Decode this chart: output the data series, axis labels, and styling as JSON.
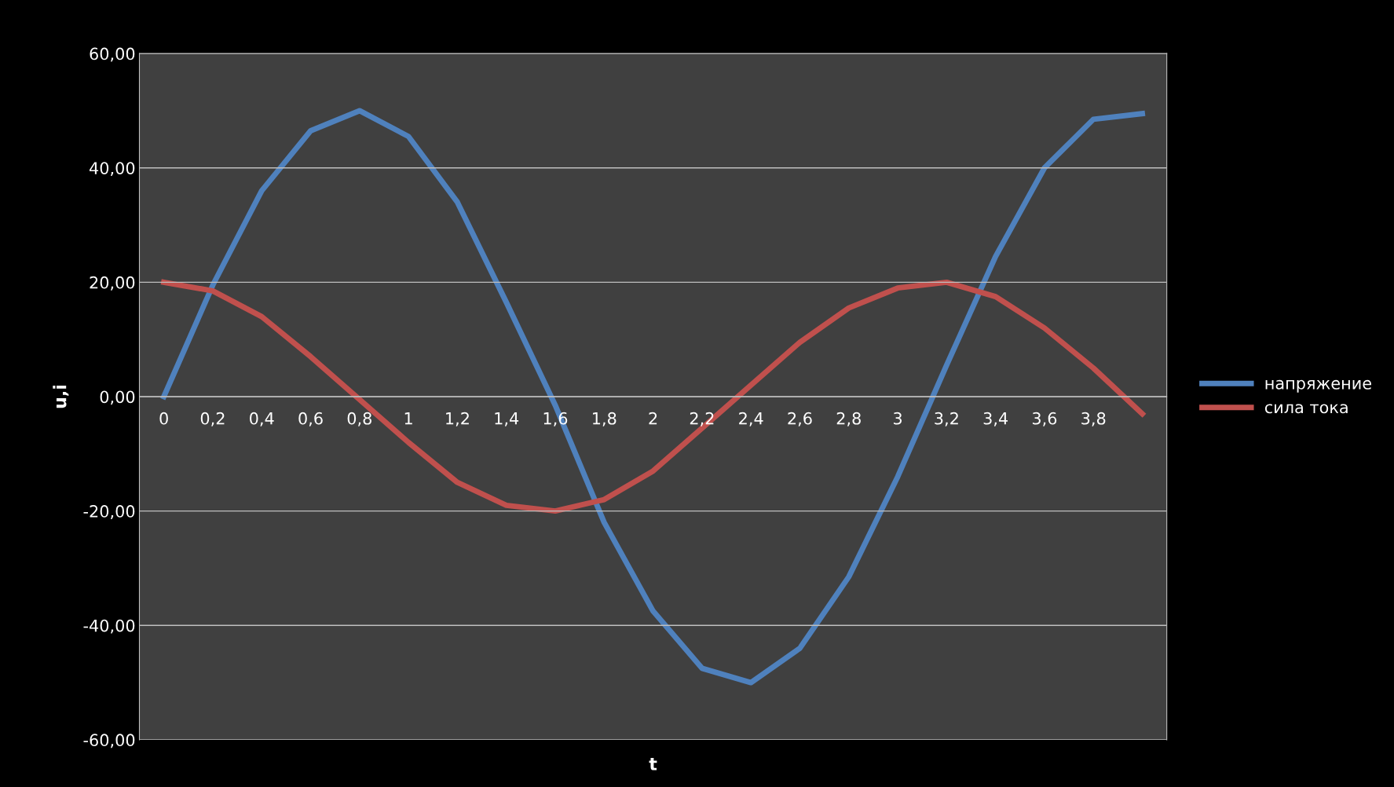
{
  "chart_data": {
    "type": "line",
    "xlabel": "t",
    "ylabel": "u,i",
    "categories": [
      "0",
      "0,2",
      "0,4",
      "0,6",
      "0,8",
      "1",
      "1,2",
      "1,4",
      "1,6",
      "1,8",
      "2",
      "2,2",
      "2,4",
      "2,6",
      "2,8",
      "3",
      "3,2",
      "3,4",
      "3,6",
      "3,8",
      null
    ],
    "series": [
      {
        "name": "напряжение",
        "color": "#4f81bd",
        "values": [
          0,
          19.5,
          36,
          46.5,
          50,
          45.5,
          34,
          16.5,
          -1.5,
          -22,
          -37.5,
          -47.5,
          -50,
          -44,
          -31.5,
          -14,
          5.5,
          24.5,
          40,
          48.5,
          49.5
        ]
      },
      {
        "name": "сила тока",
        "color": "#c0504d",
        "values": [
          20,
          18.5,
          14,
          7,
          -0.5,
          -8,
          -15,
          -19,
          -20,
          -18,
          -13,
          -5.5,
          2,
          9.5,
          15.5,
          19,
          20,
          17.5,
          12,
          5,
          -3
        ]
      }
    ],
    "ylim": [
      -60,
      60
    ],
    "yticks": [
      {
        "value": -60,
        "label": "-60,00"
      },
      {
        "value": -40,
        "label": "-40,00"
      },
      {
        "value": -20,
        "label": "-20,00"
      },
      {
        "value": 0,
        "label": "0,00"
      },
      {
        "value": 20,
        "label": "20,00"
      },
      {
        "value": 40,
        "label": "40,00"
      },
      {
        "value": 60,
        "label": "60,00"
      }
    ],
    "grid": "y",
    "legend": "right",
    "marker": "none",
    "line_style": "solid"
  }
}
